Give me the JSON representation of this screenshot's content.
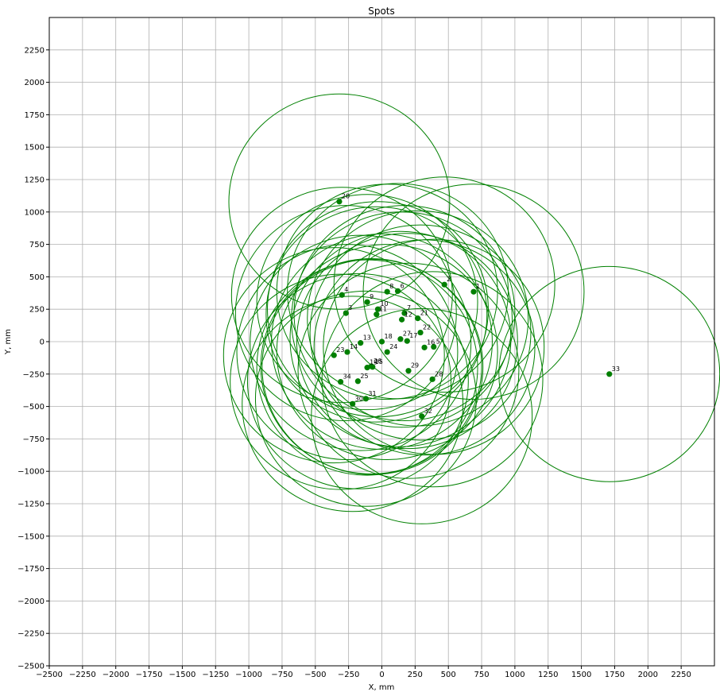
{
  "chart_data": {
    "type": "scatter",
    "title": "Spots",
    "xlabel": "X, mm",
    "ylabel": "Y, mm",
    "xlim": [
      -2500,
      2500
    ],
    "ylim": [
      -2500,
      2500
    ],
    "grid": true,
    "colors": {
      "points": "#007f00",
      "circles": "#008000",
      "grid": "#b0b0b0"
    },
    "x_ticks": [
      "−2500",
      "−2250",
      "−2000",
      "−1750",
      "−1500",
      "−1250",
      "−1000",
      "−750",
      "−500",
      "−250",
      "0",
      "250",
      "500",
      "750",
      "1000",
      "1250",
      "1500",
      "1750",
      "2000",
      "2250"
    ],
    "y_ticks": [
      "−2500",
      "−2250",
      "−2000",
      "−1750",
      "−1500",
      "−1250",
      "−1000",
      "−750",
      "−500",
      "−250",
      "0",
      "250",
      "500",
      "750",
      "1000",
      "1250",
      "1500",
      "1750",
      "2000",
      "2250"
    ],
    "tick_values": [
      -2500,
      -2250,
      -2000,
      -1750,
      -1500,
      -1250,
      -1000,
      -750,
      -500,
      -250,
      0,
      250,
      500,
      750,
      1000,
      1250,
      1500,
      1750,
      2000,
      2250
    ],
    "circle_radius": 830,
    "points": [
      {
        "label": "1",
        "x": 690,
        "y": 385
      },
      {
        "label": "2",
        "x": 470,
        "y": 440
      },
      {
        "label": "3",
        "x": -270,
        "y": 220
      },
      {
        "label": "4",
        "x": -300,
        "y": 360
      },
      {
        "label": "5",
        "x": 390,
        "y": -40
      },
      {
        "label": "6",
        "x": 120,
        "y": 390
      },
      {
        "label": "7",
        "x": 170,
        "y": 220
      },
      {
        "label": "8",
        "x": 40,
        "y": 385
      },
      {
        "label": "9",
        "x": -110,
        "y": 305
      },
      {
        "label": "10",
        "x": -30,
        "y": 250
      },
      {
        "label": "11",
        "x": -40,
        "y": 210
      },
      {
        "label": "12",
        "x": 150,
        "y": 170
      },
      {
        "label": "13",
        "x": -160,
        "y": -10
      },
      {
        "label": "14",
        "x": -260,
        "y": -80
      },
      {
        "label": "15",
        "x": -70,
        "y": -195
      },
      {
        "label": "16",
        "x": 320,
        "y": -45
      },
      {
        "label": "17",
        "x": 190,
        "y": 5
      },
      {
        "label": "18",
        "x": 0,
        "y": 0
      },
      {
        "label": "19",
        "x": -110,
        "y": -200
      },
      {
        "label": "20",
        "x": -320,
        "y": 1080
      },
      {
        "label": "21",
        "x": 270,
        "y": 180
      },
      {
        "label": "22",
        "x": 290,
        "y": 70
      },
      {
        "label": "23",
        "x": -360,
        "y": -105
      },
      {
        "label": "24",
        "x": 40,
        "y": -80
      },
      {
        "label": "25",
        "x": -180,
        "y": -305
      },
      {
        "label": "26",
        "x": -80,
        "y": -190
      },
      {
        "label": "27",
        "x": 140,
        "y": 20
      },
      {
        "label": "28",
        "x": 380,
        "y": -290
      },
      {
        "label": "29",
        "x": 200,
        "y": -225
      },
      {
        "label": "30",
        "x": -220,
        "y": -480
      },
      {
        "label": "31",
        "x": -120,
        "y": -440
      },
      {
        "label": "32",
        "x": 300,
        "y": -575
      },
      {
        "label": "33",
        "x": 1710,
        "y": -250
      },
      {
        "label": "34",
        "x": -310,
        "y": -310
      }
    ]
  }
}
